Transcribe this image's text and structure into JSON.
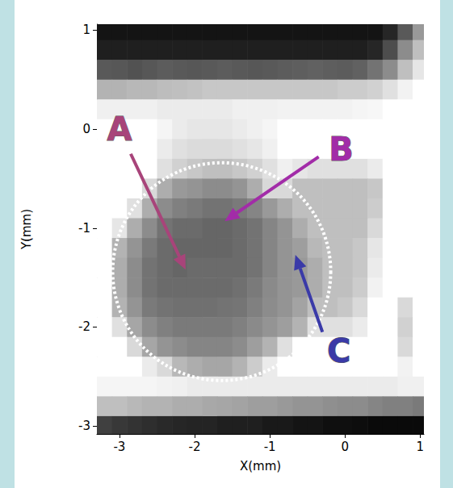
{
  "chart_data": {
    "type": "heatmap",
    "x_label": "X(mm)",
    "y_label": "Y(mm)",
    "xlim": [
      -3.3,
      1.05
    ],
    "ylim": [
      -3.08,
      1.06
    ],
    "xticks": [
      -3,
      -2,
      -1,
      0,
      1
    ],
    "yticks": [
      -3,
      -2,
      -1,
      0,
      1
    ],
    "cells": {
      "x": [
        -3.2,
        -3.0,
        -2.8,
        -2.6,
        -2.4,
        -2.2,
        -2.0,
        -1.8,
        -1.6,
        -1.4,
        -1.2,
        -1.0,
        -0.8,
        -0.6,
        -0.4,
        -0.2,
        0.0,
        0.2,
        0.4,
        0.6,
        0.8,
        1.0
      ],
      "y": [
        1.0,
        0.8,
        0.6,
        0.4,
        0.2,
        0.0,
        -0.2,
        -0.4,
        -0.6,
        -0.8,
        -1.0,
        -1.2,
        -1.4,
        -1.6,
        -1.8,
        -2.0,
        -2.2,
        -2.4,
        -2.6,
        -2.8,
        -3.0
      ],
      "zlim": [
        0,
        100
      ],
      "z": [
        [
          92,
          92,
          92,
          92,
          92,
          92,
          92,
          92,
          92,
          92,
          92,
          92,
          92,
          92,
          92,
          92,
          92,
          92,
          92,
          85,
          65,
          40
        ],
        [
          88,
          88,
          88,
          88,
          88,
          88,
          88,
          88,
          88,
          88,
          88,
          88,
          88,
          88,
          88,
          88,
          88,
          88,
          85,
          70,
          45,
          25
        ],
        [
          65,
          66,
          68,
          66,
          64,
          65,
          66,
          65,
          64,
          65,
          66,
          65,
          64,
          63,
          62,
          63,
          64,
          62,
          55,
          45,
          25,
          10
        ],
        [
          30,
          30,
          28,
          28,
          26,
          25,
          24,
          22,
          22,
          22,
          22,
          22,
          22,
          22,
          22,
          22,
          20,
          20,
          18,
          12,
          5,
          0
        ],
        [
          6,
          6,
          6,
          6,
          8,
          8,
          8,
          8,
          8,
          6,
          6,
          6,
          5,
          5,
          5,
          5,
          5,
          4,
          3,
          0,
          0,
          0
        ],
        [
          0,
          0,
          0,
          0,
          4,
          8,
          10,
          10,
          10,
          8,
          6,
          4,
          0,
          0,
          0,
          0,
          0,
          0,
          0,
          0,
          0,
          0
        ],
        [
          0,
          0,
          0,
          0,
          8,
          12,
          14,
          14,
          14,
          12,
          10,
          6,
          0,
          0,
          0,
          0,
          0,
          0,
          0,
          0,
          0,
          0
        ],
        [
          0,
          0,
          0,
          0,
          12,
          18,
          22,
          25,
          25,
          22,
          18,
          12,
          6,
          10,
          12,
          12,
          12,
          12,
          8,
          0,
          0,
          0
        ],
        [
          0,
          0,
          0,
          15,
          32,
          40,
          42,
          45,
          45,
          42,
          32,
          15,
          15,
          25,
          25,
          25,
          25,
          25,
          22,
          0,
          0,
          0
        ],
        [
          0,
          0,
          12,
          32,
          45,
          50,
          52,
          55,
          55,
          52,
          48,
          40,
          32,
          25,
          25,
          25,
          25,
          25,
          20,
          0,
          0,
          0
        ],
        [
          0,
          10,
          32,
          45,
          55,
          58,
          58,
          60,
          60,
          58,
          55,
          48,
          42,
          32,
          25,
          25,
          25,
          25,
          15,
          0,
          0,
          0
        ],
        [
          0,
          30,
          42,
          52,
          58,
          60,
          60,
          60,
          60,
          58,
          55,
          48,
          42,
          38,
          28,
          25,
          25,
          22,
          10,
          0,
          0,
          0
        ],
        [
          0,
          32,
          45,
          55,
          58,
          60,
          58,
          58,
          58,
          58,
          55,
          48,
          42,
          40,
          32,
          25,
          25,
          22,
          8,
          0,
          0,
          0
        ],
        [
          0,
          32,
          45,
          55,
          58,
          58,
          58,
          58,
          58,
          56,
          52,
          46,
          42,
          40,
          32,
          25,
          25,
          20,
          5,
          0,
          0,
          0
        ],
        [
          0,
          30,
          42,
          52,
          55,
          56,
          56,
          56,
          55,
          54,
          50,
          45,
          42,
          36,
          25,
          25,
          22,
          15,
          0,
          0,
          15,
          0
        ],
        [
          0,
          12,
          35,
          45,
          50,
          52,
          52,
          52,
          52,
          50,
          46,
          42,
          38,
          30,
          12,
          12,
          12,
          8,
          0,
          0,
          18,
          0
        ],
        [
          0,
          0,
          15,
          35,
          42,
          45,
          48,
          48,
          48,
          45,
          38,
          30,
          12,
          0,
          0,
          0,
          0,
          0,
          0,
          0,
          15,
          0
        ],
        [
          0,
          0,
          0,
          8,
          15,
          28,
          32,
          35,
          35,
          30,
          20,
          8,
          0,
          0,
          0,
          0,
          0,
          0,
          0,
          0,
          5,
          0
        ],
        [
          4,
          4,
          4,
          4,
          5,
          6,
          8,
          8,
          8,
          8,
          8,
          8,
          8,
          8,
          8,
          8,
          8,
          8,
          8,
          8,
          6,
          6
        ],
        [
          25,
          25,
          28,
          30,
          30,
          32,
          32,
          34,
          35,
          36,
          38,
          38,
          40,
          42,
          42,
          44,
          45,
          45,
          48,
          50,
          50,
          52
        ],
        [
          75,
          78,
          80,
          82,
          84,
          85,
          86,
          86,
          88,
          88,
          88,
          90,
          90,
          92,
          92,
          94,
          94,
          95,
          96,
          96,
          96,
          96
        ]
      ]
    },
    "circle": {
      "center": [
        -1.64,
        -1.44
      ],
      "radius": 1.45,
      "color": "#ffffff",
      "line_style": "dotted"
    },
    "annotations": [
      {
        "text": "A",
        "x": -3.0,
        "y": 0.0,
        "arrow_from": [
          -2.85,
          -0.25
        ],
        "arrow_to": [
          -2.12,
          -1.42
        ],
        "color": "#a8447a"
      },
      {
        "text": "B",
        "x": -0.05,
        "y": -0.2,
        "arrow_from": [
          -0.35,
          -0.28
        ],
        "arrow_to": [
          -1.6,
          -0.93
        ],
        "color": "#a22ca8"
      },
      {
        "text": "C",
        "x": -0.08,
        "y": -2.24,
        "arrow_from": [
          -0.3,
          -2.05
        ],
        "arrow_to": [
          -0.66,
          -1.27
        ],
        "color": "#3a3aa8"
      }
    ]
  }
}
